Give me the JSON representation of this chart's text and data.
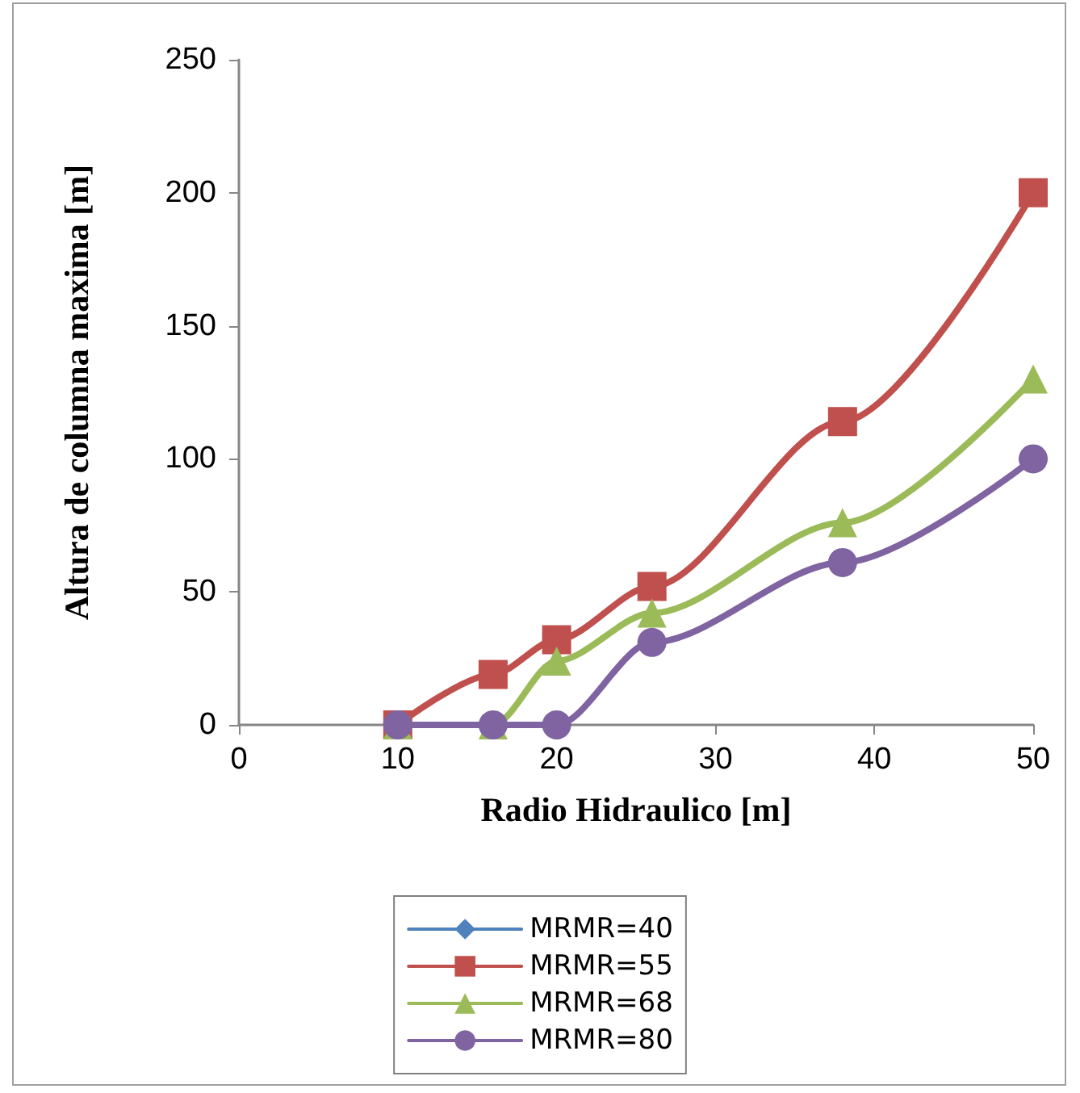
{
  "chart_data": {
    "type": "line",
    "xlabel": "Radio Hidraulico [m]",
    "ylabel": "Altura de columna maxima [m]",
    "x": [
      10,
      16,
      20,
      26,
      38,
      50
    ],
    "series": [
      {
        "name": "MRMR=40",
        "color": "#4f81bd",
        "marker": "diamond",
        "values": [
          null,
          null,
          null,
          null,
          null,
          null
        ]
      },
      {
        "name": "MRMR=55",
        "color": "#c0504d",
        "marker": "square",
        "values": [
          0,
          19,
          32,
          52,
          114,
          200
        ]
      },
      {
        "name": "MRMR=68",
        "color": "#9bbb59",
        "marker": "triangle",
        "values": [
          0,
          0,
          24,
          42,
          76,
          130
        ]
      },
      {
        "name": "MRMR=80",
        "color": "#8064a2",
        "marker": "circle",
        "values": [
          0,
          0,
          0,
          31,
          61,
          100
        ]
      }
    ],
    "xlim": [
      0,
      50
    ],
    "xticks": [
      0,
      10,
      20,
      30,
      40,
      50
    ],
    "ylim": [
      0,
      250
    ],
    "yticks": [
      0,
      50,
      100,
      150,
      200,
      250
    ],
    "grid": false,
    "legend": "bottom",
    "line_style": "solid"
  }
}
